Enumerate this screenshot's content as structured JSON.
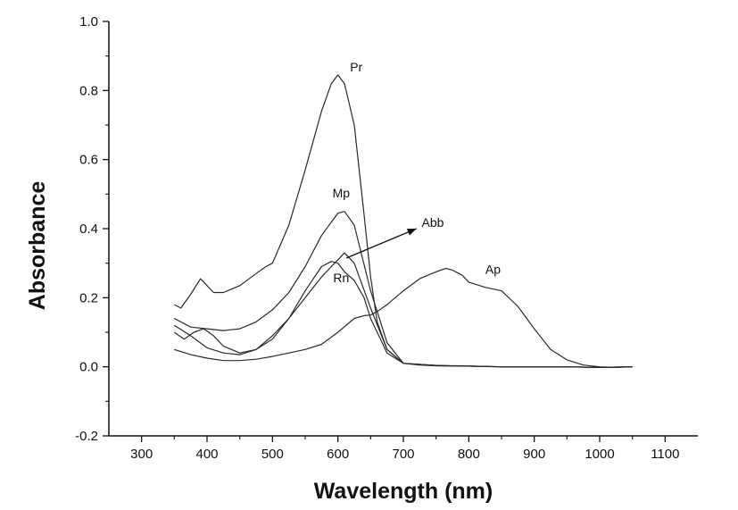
{
  "chart_data": {
    "type": "line",
    "title": "",
    "xlabel": "Wavelength (nm)",
    "ylabel": "Absorbance",
    "xlim": [
      250,
      1150
    ],
    "ylim": [
      -0.2,
      1.0
    ],
    "xticks": [
      300,
      400,
      500,
      600,
      700,
      800,
      900,
      1000,
      1100
    ],
    "yticks": [
      -0.2,
      0.0,
      0.2,
      0.4,
      0.6,
      0.8,
      1.0
    ],
    "ytick_labels": [
      "-0.2",
      "0.0",
      "0.2",
      "0.4",
      "0.6",
      "0.8",
      "1.0"
    ],
    "grid": false,
    "legend": "none",
    "line_color": "#2a2a2a",
    "series": [
      {
        "name": "Pr",
        "x": [
          350,
          360,
          375,
          390,
          400,
          410,
          425,
          450,
          475,
          490,
          500,
          525,
          550,
          575,
          590,
          600,
          610,
          625,
          640,
          650,
          660,
          675,
          700,
          725,
          750,
          800,
          850,
          900,
          950,
          1000,
          1050
        ],
        "y": [
          0.18,
          0.17,
          0.21,
          0.255,
          0.235,
          0.215,
          0.215,
          0.235,
          0.27,
          0.29,
          0.3,
          0.41,
          0.57,
          0.74,
          0.82,
          0.845,
          0.82,
          0.7,
          0.44,
          0.26,
          0.13,
          0.05,
          0.01,
          0.005,
          0.003,
          0.002,
          0.0,
          0.0,
          0.0,
          -0.002,
          0.0
        ]
      },
      {
        "name": "Mp",
        "x": [
          350,
          375,
          400,
          425,
          450,
          475,
          500,
          525,
          550,
          575,
          600,
          610,
          625,
          650,
          675,
          700,
          750,
          800,
          850,
          900,
          950,
          1000,
          1050
        ],
        "y": [
          0.14,
          0.115,
          0.11,
          0.105,
          0.11,
          0.13,
          0.165,
          0.215,
          0.29,
          0.38,
          0.445,
          0.45,
          0.41,
          0.22,
          0.07,
          0.01,
          0.004,
          0.002,
          0.0,
          0.0,
          0.0,
          -0.002,
          0.0
        ]
      },
      {
        "name": "Abb",
        "x": [
          350,
          375,
          400,
          425,
          450,
          475,
          500,
          525,
          550,
          575,
          590,
          600,
          610,
          625,
          650,
          675,
          700,
          750,
          800,
          850,
          900,
          950,
          1000,
          1050
        ],
        "y": [
          0.12,
          0.09,
          0.055,
          0.04,
          0.035,
          0.05,
          0.09,
          0.14,
          0.2,
          0.26,
          0.29,
          0.31,
          0.33,
          0.3,
          0.17,
          0.05,
          0.01,
          0.004,
          0.002,
          0.0,
          0.0,
          0.0,
          -0.002,
          0.0
        ]
      },
      {
        "name": "Rn",
        "x": [
          350,
          365,
          380,
          395,
          410,
          425,
          450,
          475,
          500,
          525,
          550,
          575,
          590,
          600,
          610,
          625,
          640,
          650,
          675,
          700,
          750,
          800,
          850,
          900,
          950,
          1000,
          1050
        ],
        "y": [
          0.1,
          0.08,
          0.1,
          0.11,
          0.09,
          0.06,
          0.04,
          0.05,
          0.08,
          0.14,
          0.22,
          0.29,
          0.305,
          0.3,
          0.275,
          0.25,
          0.2,
          0.14,
          0.04,
          0.01,
          0.003,
          0.002,
          0.0,
          0.0,
          0.0,
          -0.002,
          0.0
        ]
      },
      {
        "name": "Ap",
        "x": [
          350,
          375,
          400,
          425,
          450,
          475,
          500,
          525,
          550,
          575,
          600,
          625,
          640,
          650,
          660,
          675,
          700,
          725,
          750,
          765,
          775,
          790,
          800,
          825,
          850,
          875,
          900,
          925,
          950,
          975,
          1000,
          1025,
          1050
        ],
        "y": [
          0.05,
          0.035,
          0.025,
          0.018,
          0.018,
          0.022,
          0.03,
          0.04,
          0.05,
          0.065,
          0.1,
          0.14,
          0.148,
          0.15,
          0.16,
          0.18,
          0.22,
          0.255,
          0.275,
          0.285,
          0.28,
          0.265,
          0.245,
          0.23,
          0.22,
          0.175,
          0.11,
          0.05,
          0.02,
          0.005,
          0.0,
          -0.002,
          0.0
        ]
      }
    ],
    "annotations": [
      {
        "text": "Pr",
        "x": 628,
        "y": 0.855
      },
      {
        "text": "Mp",
        "x": 605,
        "y": 0.49
      },
      {
        "text": "Abb",
        "x": 745,
        "y": 0.405,
        "arrow_from": {
          "x": 613,
          "y": 0.315
        },
        "arrow_to": {
          "x": 720,
          "y": 0.4
        }
      },
      {
        "text": "Rn",
        "x": 605,
        "y": 0.245
      },
      {
        "text": "Ap",
        "x": 837,
        "y": 0.27
      }
    ]
  }
}
